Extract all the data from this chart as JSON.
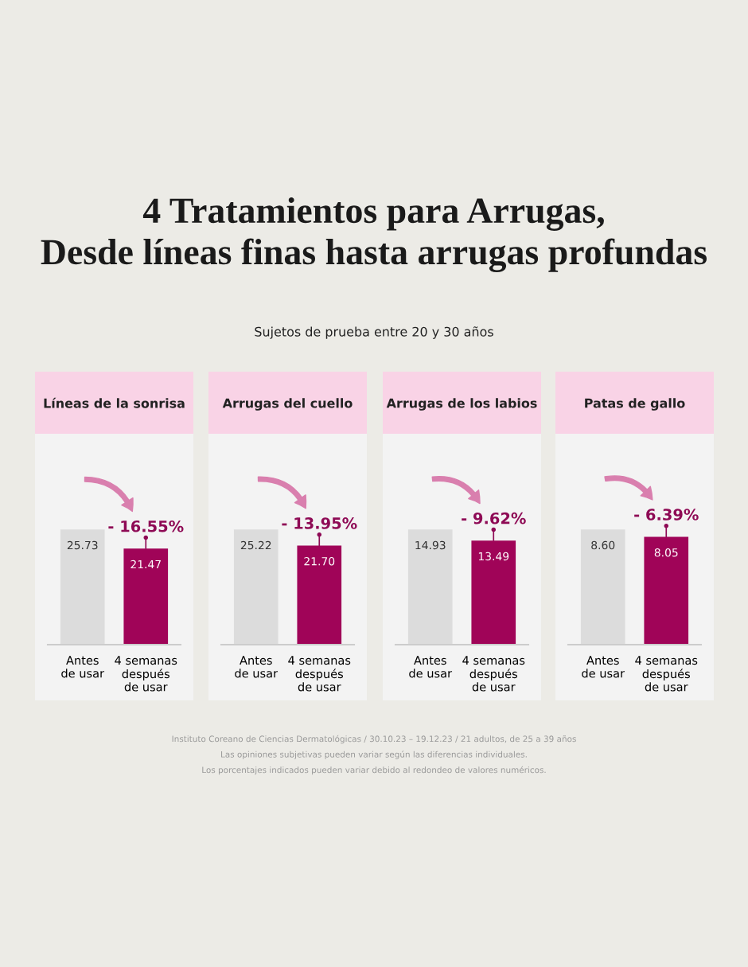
{
  "chart_data": [
    {
      "type": "bar",
      "title": "Líneas de la sonrisa",
      "categories": [
        "Antes\nde usar",
        "4 semanas\ndespués\nde usar"
      ],
      "values": [
        25.73,
        21.47
      ],
      "value_labels": [
        "25.73",
        "21.47"
      ],
      "colors": [
        "#dcdcdc",
        "#a00458"
      ],
      "grid": false,
      "tick_labels": "x",
      "annotations": [
        {
          "text": "- 16.55%",
          "x": "4 semanas\ndespués\nde usar",
          "y": 21.47
        },
        "4 Tratamientos para Arrugas,\nDesde líneas finas hasta arrugas profundas",
        "Sujetos de prueba entre 20 y 30 años"
      ]
    },
    {
      "type": "bar",
      "title": "Arrugas del cuello",
      "categories": [
        "Antes\nde usar",
        "4 semanas\ndespués\nde usar"
      ],
      "values": [
        25.22,
        21.7
      ],
      "value_labels": [
        "25.22",
        "21.70"
      ],
      "colors": [
        "#dcdcdc",
        "#a00458"
      ],
      "grid": false,
      "tick_labels": "x",
      "annotations": [
        {
          "text": "- 13.95%",
          "x": "4 semanas\ndespués\nde usar",
          "y": 21.7
        }
      ]
    },
    {
      "type": "bar",
      "title": "Arrugas de los labios",
      "categories": [
        "Antes\nde usar",
        "4 semanas\ndespués\nde usar"
      ],
      "values": [
        14.93,
        13.49
      ],
      "value_labels": [
        "14.93",
        "13.49"
      ],
      "colors": [
        "#dcdcdc",
        "#a00458"
      ],
      "grid": false,
      "tick_labels": "x",
      "annotations": [
        {
          "text": "- 9.62%",
          "x": "4 semanas\ndespués\nde usar",
          "y": 13.49
        }
      ]
    },
    {
      "type": "bar",
      "title": "Patas de gallo",
      "categories": [
        "Antes\nde usar",
        "4 semanas\ndespués\nde usar"
      ],
      "values": [
        8.6,
        8.05
      ],
      "value_labels": [
        "8.60",
        "8.05"
      ],
      "colors": [
        "#dcdcdc",
        "#a00458"
      ],
      "grid": false,
      "tick_labels": "x",
      "annotations": [
        {
          "text": "- 6.39%",
          "x": "4 semanas\ndespués\nde usar",
          "y": 8.05
        },
        "Instituto Coreano de Ciencias Dermatológicas / 30.10.23 – 19.12.23 / 21 adultos, de 25 a 39 años",
        "Las opiniones subjetivas pueden variar según las diferencias individuales.",
        "Los porcentajes indicados pueden variar debido al redondeo de valores numéricos."
      ]
    }
  ]
}
